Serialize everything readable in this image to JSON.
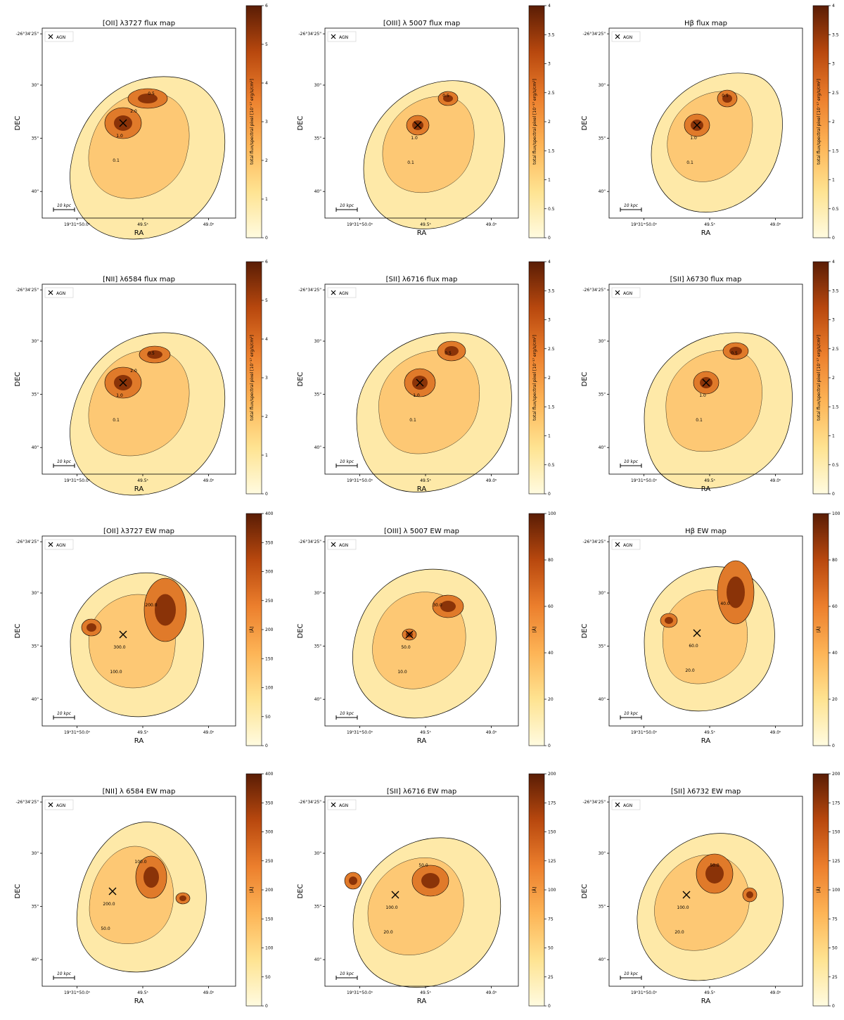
{
  "figure": {
    "ra_ticks": [
      "19ʰ31ᵐ50.0ˢ",
      "49.5ˢ",
      "49.0ˢ"
    ],
    "dec_ticks": [
      "-26°34'25\"",
      "30\"",
      "35\"",
      "40\""
    ],
    "xlabel": "RA",
    "ylabel": "DEC",
    "legend_label": "AGN",
    "scalebar_label": "10 kpc",
    "colorbar_flux_label": "total flux/spectral pixel [10⁻¹⁷ erg/s/cm²]",
    "colorbar_ew_label": "[Å]"
  },
  "chart_data": [
    {
      "type": "heatmap",
      "title": "[OII] λ3727 flux map",
      "colorbar_ticks": [
        0,
        1,
        2,
        3,
        4,
        5,
        6
      ],
      "colorbar_range": [
        0,
        6
      ],
      "colorbar_label_kind": "flux",
      "contour_labels": [
        "0.1",
        "0.5",
        "1.0",
        "2.0"
      ],
      "agn_position": [
        "19h31m49.64s",
        "-26°34'33.5\""
      ]
    },
    {
      "type": "heatmap",
      "title": "[OIII] λ 5007 flux map",
      "colorbar_ticks": [
        0.0,
        0.5,
        1.0,
        1.5,
        2.0,
        2.5,
        3.0,
        3.5,
        4.0
      ],
      "colorbar_range": [
        0,
        4
      ],
      "colorbar_label_kind": "flux",
      "contour_labels": [
        "0.1",
        "0.5",
        "1.0"
      ]
    },
    {
      "type": "heatmap",
      "title": "Hβ flux map",
      "colorbar_ticks": [
        0.0,
        0.5,
        1.0,
        1.5,
        2.0,
        2.5,
        3.0,
        3.5,
        4.0
      ],
      "colorbar_range": [
        0,
        4
      ],
      "colorbar_label_kind": "flux",
      "contour_labels": [
        "0.1",
        "0.5",
        "1.0"
      ]
    },
    {
      "type": "heatmap",
      "title": "[NII] λ6584 flux map",
      "colorbar_ticks": [
        0,
        1,
        2,
        3,
        4,
        5,
        6
      ],
      "colorbar_range": [
        0,
        6
      ],
      "colorbar_label_kind": "flux",
      "contour_labels": [
        "0.1",
        "0.5",
        "1.0",
        "2.0"
      ]
    },
    {
      "type": "heatmap",
      "title": "[SII] λ6716 flux map",
      "colorbar_ticks": [
        0.0,
        0.5,
        1.0,
        1.5,
        2.0,
        2.5,
        3.0,
        3.5,
        4.0
      ],
      "colorbar_range": [
        0,
        4
      ],
      "colorbar_label_kind": "flux",
      "contour_labels": [
        "0.1",
        "0.5",
        "1.0"
      ]
    },
    {
      "type": "heatmap",
      "title": "[SII] λ6730 flux map",
      "colorbar_ticks": [
        0.0,
        0.5,
        1.0,
        1.5,
        2.0,
        2.5,
        3.0,
        3.5,
        4.0
      ],
      "colorbar_range": [
        0,
        4
      ],
      "colorbar_label_kind": "flux",
      "contour_labels": [
        "0.1",
        "0.5",
        "1.0"
      ]
    },
    {
      "type": "heatmap",
      "title": "[OII] λ3727 EW map",
      "colorbar_ticks": [
        0,
        50,
        100,
        150,
        200,
        250,
        300,
        350,
        400
      ],
      "colorbar_range": [
        0,
        400
      ],
      "colorbar_label_kind": "ew",
      "contour_labels": [
        "100.0",
        "200.0",
        "300.0"
      ]
    },
    {
      "type": "heatmap",
      "title": "[OIII] λ 5007 EW map",
      "colorbar_ticks": [
        0,
        20,
        40,
        60,
        80,
        100
      ],
      "colorbar_range": [
        0,
        100
      ],
      "colorbar_label_kind": "ew",
      "contour_labels": [
        "10.0",
        "30.0",
        "50.0"
      ]
    },
    {
      "type": "heatmap",
      "title": "Hβ EW map",
      "colorbar_ticks": [
        0,
        20,
        40,
        60,
        80,
        100
      ],
      "colorbar_range": [
        0,
        100
      ],
      "colorbar_label_kind": "ew",
      "contour_labels": [
        "20.0",
        "40.0",
        "60.0"
      ]
    },
    {
      "type": "heatmap",
      "title": "[NII] λ 6584 EW map",
      "colorbar_ticks": [
        0,
        50,
        100,
        150,
        200,
        250,
        300,
        350,
        400
      ],
      "colorbar_range": [
        0,
        400
      ],
      "colorbar_label_kind": "ew",
      "contour_labels": [
        "50.0",
        "100.0",
        "200.0"
      ]
    },
    {
      "type": "heatmap",
      "title": "[SII] λ6716 EW map",
      "colorbar_ticks": [
        0,
        25,
        50,
        75,
        100,
        125,
        150,
        175,
        200
      ],
      "colorbar_range": [
        0,
        200
      ],
      "colorbar_label_kind": "ew",
      "contour_labels": [
        "20.0",
        "50.0",
        "100.0"
      ]
    },
    {
      "type": "heatmap",
      "title": "[SII] λ6732 EW map",
      "colorbar_ticks": [
        0,
        25,
        50,
        75,
        100,
        125,
        150,
        175,
        200
      ],
      "colorbar_range": [
        0,
        200
      ],
      "colorbar_label_kind": "ew",
      "contour_labels": [
        "20.0",
        "50.0",
        "100.0"
      ]
    }
  ]
}
